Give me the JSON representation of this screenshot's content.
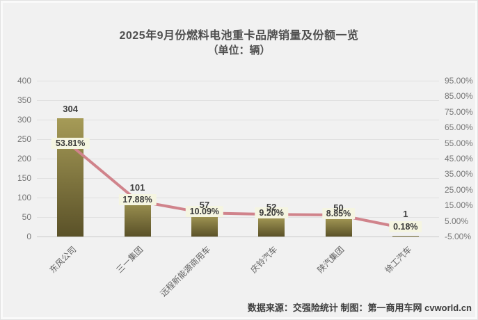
{
  "title": "2025年9月份燃料电池重卡品牌销量及份额一览",
  "subtitle": "（单位：辆）",
  "footer": "数据来源：交强险统计 制图：第一商用车网 cvworld.cn",
  "colors": {
    "background": "#f1f1f1",
    "bar_top": "#a69b57",
    "bar_bottom": "#5a5128",
    "line": "#d0838b",
    "pct_label_bg": "#f5f5e1",
    "gridline": "#e0e0e0",
    "axis_text": "#767676",
    "value_text": "#3f3f3f"
  },
  "chart_data": {
    "type": "bar",
    "subtype": "bar+line-dual-axis",
    "title": "2025年9月份燃料电池重卡品牌销量及份额一览（单位：辆）",
    "categories": [
      "东风公司",
      "三一集团",
      "远程新能源商用车",
      "庆铃汽车",
      "陕汽集团",
      "徐工汽车"
    ],
    "series": [
      {
        "name": "销量",
        "type": "bar",
        "axis": "left",
        "values": [
          304,
          101,
          57,
          52,
          50,
          1
        ]
      },
      {
        "name": "份额",
        "type": "line",
        "axis": "right",
        "values": [
          53.81,
          17.88,
          10.09,
          9.2,
          8.85,
          0.18
        ]
      }
    ],
    "value_labels": [
      "304",
      "101",
      "57",
      "52",
      "50",
      "1"
    ],
    "pct_labels": [
      "53.81%",
      "17.88%",
      "10.09%",
      "9.20%",
      "8.85%",
      "0.18%"
    ],
    "left_axis": {
      "min": 0,
      "max": 400,
      "step": 50,
      "ticks": [
        "400",
        "350",
        "300",
        "250",
        "200",
        "150",
        "100",
        "50",
        "0"
      ]
    },
    "right_axis": {
      "min": -5,
      "max": 95,
      "step": 10,
      "ticks": [
        "95.00%",
        "85.00%",
        "75.00%",
        "65.00%",
        "55.00%",
        "45.00%",
        "35.00%",
        "25.00%",
        "15.00%",
        "5.00%",
        "-5.00%"
      ]
    },
    "grid": true,
    "legend": "none"
  }
}
